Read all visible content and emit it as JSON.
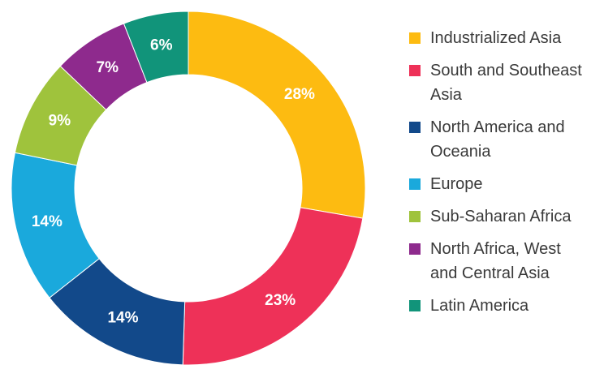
{
  "chart_data": {
    "type": "pie",
    "donut": true,
    "start": "top",
    "direction": "clockwise",
    "slices": [
      {
        "label": "Industrialized Asia",
        "legend_label": "Industrialized Asia",
        "value": 28,
        "display": "28%",
        "color": "#FDBB11"
      },
      {
        "label": "South and Southeast Asia",
        "legend_label": "South and Southeast\nAsia",
        "value": 23,
        "display": "23%",
        "color": "#EE3158"
      },
      {
        "label": "North America and Oceania",
        "legend_label": "North America and\nOceania",
        "value": 14,
        "display": "14%",
        "color": "#12498A"
      },
      {
        "label": "Europe",
        "legend_label": "Europe",
        "value": 14,
        "display": "14%",
        "color": "#1AA9DC"
      },
      {
        "label": "Sub-Saharan Africa",
        "legend_label": "Sub-Saharan Africa",
        "value": 9,
        "display": "9%",
        "color": "#9FC33C"
      },
      {
        "label": "North Africa, West and Central Asia",
        "legend_label": "North Africa, West\nand Central Asia",
        "value": 7,
        "display": "7%",
        "color": "#8E2A8D"
      },
      {
        "label": "Latin America",
        "legend_label": "Latin America",
        "value": 6,
        "display": "6%",
        "color": "#11947A"
      }
    ],
    "legend_placement": "right"
  }
}
